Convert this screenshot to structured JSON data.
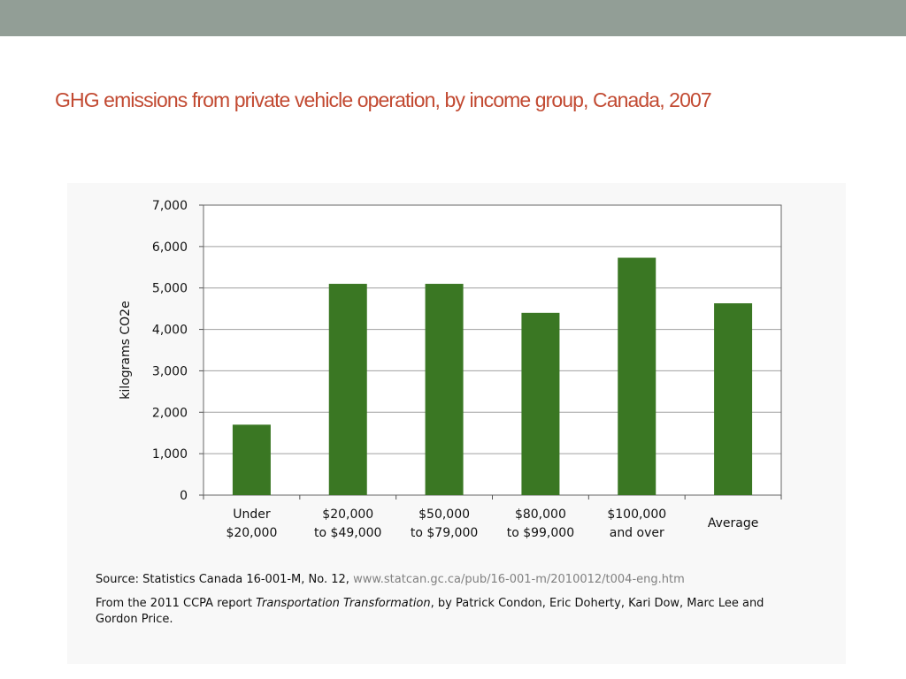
{
  "slide": {
    "title": "GHG emissions from private vehicle operation, by income group, Canada, 2007"
  },
  "colors": {
    "top_band": "#929e96",
    "title": "#c24a32",
    "bar": "#3a7723",
    "grid": "#a0a0a0",
    "source_url": "#808080"
  },
  "chart_data": {
    "type": "bar",
    "categories": [
      [
        "Under",
        "$20,000"
      ],
      [
        "$20,000",
        "to $49,000"
      ],
      [
        "$50,000",
        "to $79,000"
      ],
      [
        "$80,000",
        "to $99,000"
      ],
      [
        "$100,000",
        "and over"
      ],
      [
        "Average"
      ]
    ],
    "values": [
      1700,
      5100,
      5100,
      4400,
      5730,
      4630
    ],
    "title": "",
    "xlabel": "",
    "ylabel": "kilograms CO2e",
    "ylim": [
      0,
      7000
    ],
    "yticks": [
      0,
      1000,
      2000,
      3000,
      4000,
      5000,
      6000,
      7000
    ],
    "ytick_labels": [
      "0",
      "1,000",
      "2,000",
      "3,000",
      "4,000",
      "5,000",
      "6,000",
      "7,000"
    ],
    "grid": true,
    "legend": "none"
  },
  "caption": {
    "source_prefix": "Source: Statistics Canada 16-001-M, No. 12,",
    "source_url": "www.statcan.gc.ca/pub/16-001-m/2010012/t004-eng.htm",
    "credit_prefix": "From the 2011 CCPA report",
    "credit_title": "Transportation Transformation",
    "credit_suffix": ", by Patrick Condon, Eric Doherty, Kari Dow, Marc Lee and Gordon Price."
  }
}
